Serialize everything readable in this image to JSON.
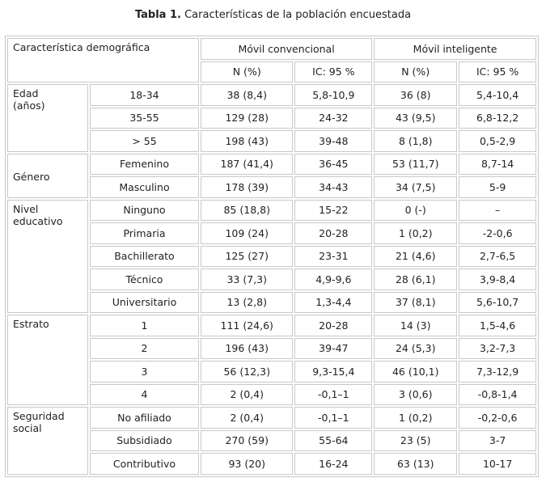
{
  "caption": {
    "label": "Tabla 1.",
    "text": " Características de la población encuestada"
  },
  "header": {
    "characteristic": "Característica demográfica",
    "group1": "Móvil convencional",
    "group2": "Móvil inteligente",
    "sub": [
      "N (%)",
      "IC: 95 %",
      "N (%)",
      "IC: 95 %"
    ]
  },
  "groups": [
    {
      "label": "Edad\n(años)",
      "rows": [
        [
          "18-34",
          "38 (8,4)",
          "5,8-10,9",
          "36 (8)",
          "5,4-10,4"
        ],
        [
          "35-55",
          "129 (28)",
          "24-32",
          "43 (9,5)",
          "6,8-12,2"
        ],
        [
          "> 55",
          "198 (43)",
          "39-48",
          "8 (1,8)",
          "0,5-2,9"
        ]
      ]
    },
    {
      "label": "Género",
      "rows": [
        [
          "Femenino",
          "187 (41,4)",
          "36-45",
          "53 (11,7)",
          "8,7-14"
        ],
        [
          "Masculino",
          "178 (39)",
          "34-43",
          "34 (7,5)",
          "5-9"
        ]
      ]
    },
    {
      "label": "Nivel\neducativo",
      "rows": [
        [
          "Ninguno",
          "85 (18,8)",
          "15-22",
          "0 (-)",
          "–"
        ],
        [
          "Primaria",
          "109 (24)",
          "20-28",
          "1 (0,2)",
          "-2-0,6"
        ],
        [
          "Bachillerato",
          "125 (27)",
          "23-31",
          "21 (4,6)",
          "2,7-6,5"
        ],
        [
          "Técnico",
          "33 (7,3)",
          "4,9-9,6",
          "28 (6,1)",
          "3,9-8,4"
        ],
        [
          "Universitario",
          "13 (2,8)",
          "1,3-4,4",
          "37 (8,1)",
          "5,6-10,7"
        ]
      ]
    },
    {
      "label": "Estrato",
      "rows": [
        [
          "1",
          "111 (24,6)",
          "20-28",
          "14 (3)",
          "1,5-4,6"
        ],
        [
          "2",
          "196 (43)",
          "39-47",
          "24 (5,3)",
          "3,2-7,3"
        ],
        [
          "3",
          "56 (12,3)",
          "9,3-15,4",
          "46 (10,1)",
          "7,3-12,9"
        ],
        [
          "4",
          "2 (0,4)",
          "-0,1–1",
          "3 (0,6)",
          "-0,8-1,4"
        ]
      ]
    },
    {
      "label": "Seguridad\nsocial",
      "rows": [
        [
          "No afiliado",
          "2 (0,4)",
          "-0,1–1",
          "1 (0,2)",
          "-0,2-0,6"
        ],
        [
          "Subsidiado",
          "270 (59)",
          "55-64",
          "23 (5)",
          "3-7"
        ],
        [
          "Contributivo",
          "93 (20)",
          "16-24",
          "63 (13)",
          "10-17"
        ]
      ]
    }
  ]
}
